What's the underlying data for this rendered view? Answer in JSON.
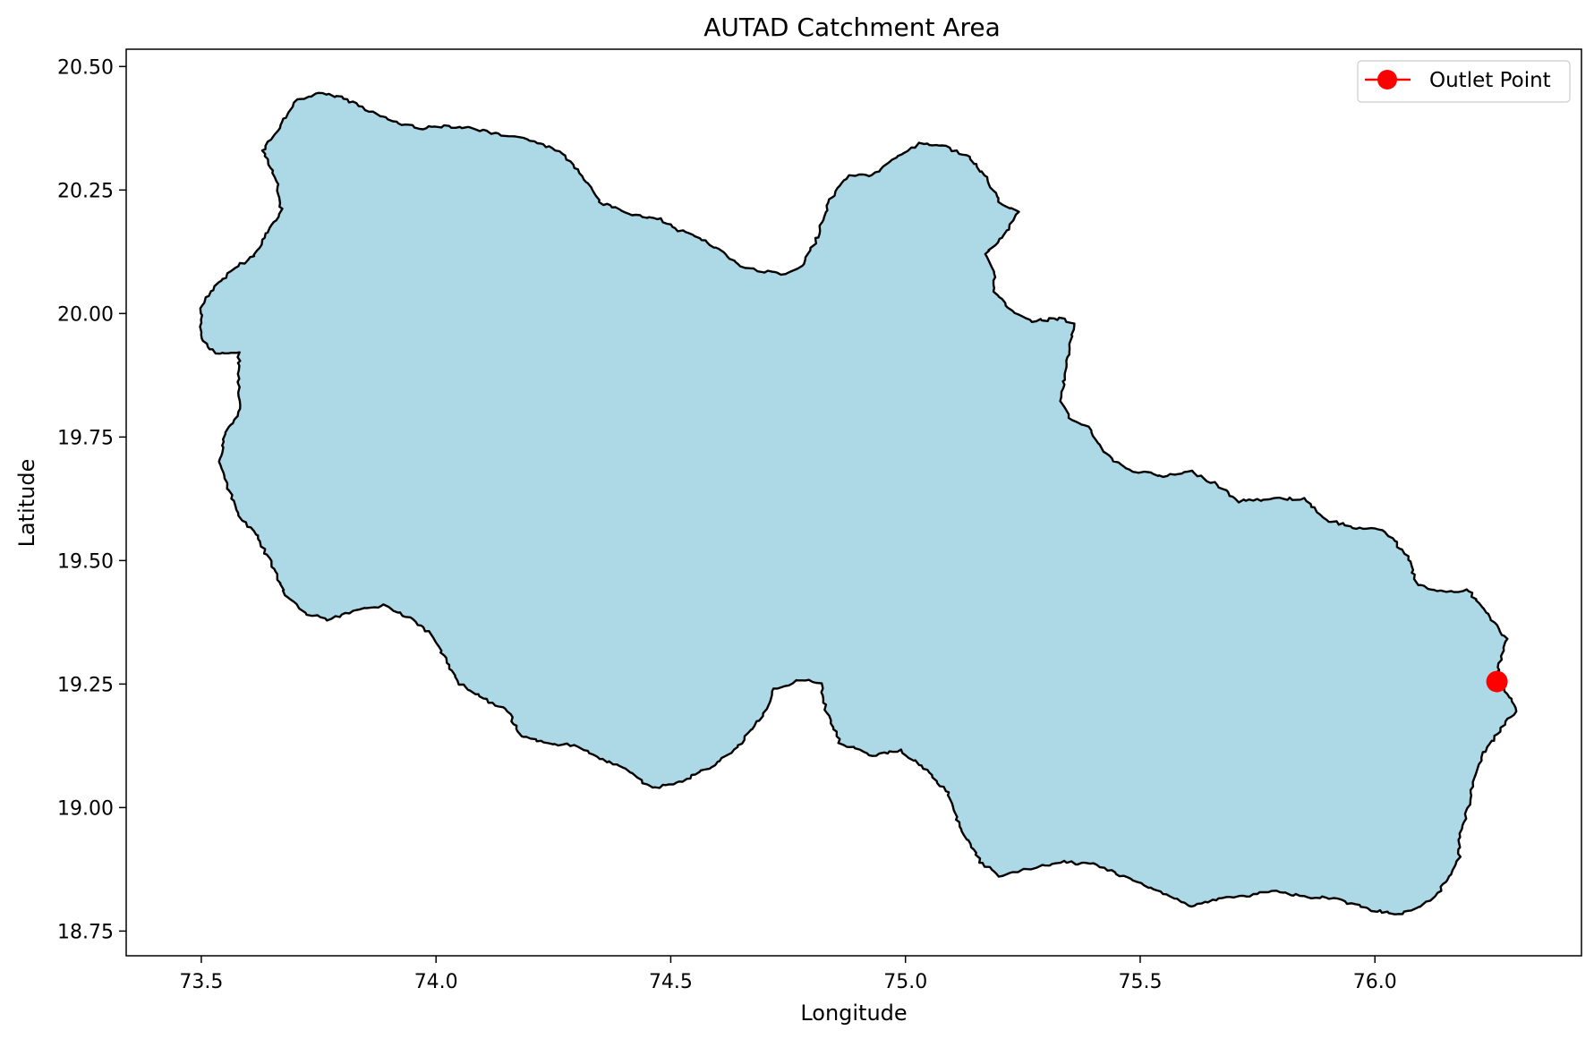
{
  "title": "AUTAD Catchment Area",
  "chart_data": {
    "type": "map",
    "title": "AUTAD Catchment Area",
    "xlabel": "Longitude",
    "ylabel": "Latitude",
    "xlim": [
      73.34,
      76.44
    ],
    "ylim": [
      18.7,
      20.535
    ],
    "xticks": [
      73.5,
      74.0,
      74.5,
      75.0,
      75.5,
      76.0
    ],
    "xtick_labels": [
      "73.5",
      "74.0",
      "74.5",
      "75.0",
      "75.5",
      "76.0"
    ],
    "yticks": [
      18.75,
      19.0,
      19.25,
      19.5,
      19.75,
      20.0,
      20.25,
      20.5
    ],
    "ytick_labels": [
      "18.75",
      "19.00",
      "19.25",
      "19.50",
      "19.75",
      "20.00",
      "20.25",
      "20.50"
    ],
    "grid": false,
    "legend_position": "top-right",
    "legend": [
      {
        "label": "Outlet Point",
        "color": "#ff0000",
        "marker": "circle"
      }
    ],
    "catchment_fill_color": "#add8e6",
    "catchment_edge_color": "#000000",
    "outlet_point": {
      "name": "Outlet Point",
      "x": 76.26,
      "y": 19.255,
      "color": "#ff0000"
    },
    "catchment_boundary": [
      [
        73.7,
        20.43
      ],
      [
        73.75,
        20.445
      ],
      [
        73.79,
        20.44
      ],
      [
        73.83,
        20.425
      ],
      [
        73.88,
        20.4
      ],
      [
        73.92,
        20.385
      ],
      [
        73.97,
        20.375
      ],
      [
        74.02,
        20.38
      ],
      [
        74.08,
        20.375
      ],
      [
        74.14,
        20.36
      ],
      [
        74.21,
        20.35
      ],
      [
        74.27,
        20.325
      ],
      [
        74.31,
        20.28
      ],
      [
        74.35,
        20.225
      ],
      [
        74.39,
        20.21
      ],
      [
        74.44,
        20.195
      ],
      [
        74.48,
        20.19
      ],
      [
        74.51,
        20.17
      ],
      [
        74.56,
        20.155
      ],
      [
        74.61,
        20.125
      ],
      [
        74.65,
        20.095
      ],
      [
        74.7,
        20.085
      ],
      [
        74.75,
        20.08
      ],
      [
        74.78,
        20.095
      ],
      [
        74.81,
        20.15
      ],
      [
        74.84,
        20.23
      ],
      [
        74.88,
        20.28
      ],
      [
        74.93,
        20.28
      ],
      [
        74.98,
        20.315
      ],
      [
        75.03,
        20.345
      ],
      [
        75.08,
        20.34
      ],
      [
        75.13,
        20.32
      ],
      [
        75.17,
        20.28
      ],
      [
        75.2,
        20.225
      ],
      [
        75.24,
        20.205
      ],
      [
        75.21,
        20.16
      ],
      [
        75.17,
        20.12
      ],
      [
        75.19,
        20.085
      ],
      [
        75.19,
        20.045
      ],
      [
        75.22,
        20.01
      ],
      [
        75.27,
        19.985
      ],
      [
        75.33,
        19.99
      ],
      [
        75.36,
        19.98
      ],
      [
        75.35,
        19.93
      ],
      [
        75.34,
        19.875
      ],
      [
        75.33,
        19.825
      ],
      [
        75.35,
        19.79
      ],
      [
        75.39,
        19.77
      ],
      [
        75.42,
        19.72
      ],
      [
        75.47,
        19.685
      ],
      [
        75.55,
        19.67
      ],
      [
        75.61,
        19.68
      ],
      [
        75.67,
        19.65
      ],
      [
        75.71,
        19.62
      ],
      [
        75.78,
        19.625
      ],
      [
        75.85,
        19.625
      ],
      [
        75.9,
        19.58
      ],
      [
        75.97,
        19.565
      ],
      [
        76.02,
        19.56
      ],
      [
        76.07,
        19.51
      ],
      [
        76.09,
        19.45
      ],
      [
        76.15,
        19.435
      ],
      [
        76.2,
        19.44
      ],
      [
        76.24,
        19.39
      ],
      [
        76.28,
        19.34
      ],
      [
        76.26,
        19.27
      ],
      [
        76.285,
        19.225
      ],
      [
        76.3,
        19.195
      ],
      [
        76.27,
        19.16
      ],
      [
        76.23,
        19.11
      ],
      [
        76.21,
        19.06
      ],
      [
        76.2,
        19.0
      ],
      [
        76.18,
        18.95
      ],
      [
        76.18,
        18.9
      ],
      [
        76.16,
        18.86
      ],
      [
        76.13,
        18.82
      ],
      [
        76.08,
        18.79
      ],
      [
        76.04,
        18.785
      ],
      [
        75.98,
        18.795
      ],
      [
        75.92,
        18.815
      ],
      [
        75.85,
        18.82
      ],
      [
        75.78,
        18.83
      ],
      [
        75.72,
        18.82
      ],
      [
        75.66,
        18.815
      ],
      [
        75.61,
        18.8
      ],
      [
        75.55,
        18.825
      ],
      [
        75.48,
        18.855
      ],
      [
        75.4,
        18.885
      ],
      [
        75.33,
        18.89
      ],
      [
        75.26,
        18.875
      ],
      [
        75.2,
        18.86
      ],
      [
        75.16,
        18.89
      ],
      [
        75.12,
        18.95
      ],
      [
        75.09,
        19.03
      ],
      [
        75.04,
        19.08
      ],
      [
        74.99,
        19.115
      ],
      [
        74.93,
        19.105
      ],
      [
        74.86,
        19.13
      ],
      [
        74.83,
        19.2
      ],
      [
        74.82,
        19.25
      ],
      [
        74.78,
        19.26
      ],
      [
        74.72,
        19.24
      ],
      [
        74.7,
        19.19
      ],
      [
        74.64,
        19.12
      ],
      [
        74.58,
        19.08
      ],
      [
        74.52,
        19.05
      ],
      [
        74.46,
        19.04
      ],
      [
        74.4,
        19.08
      ],
      [
        74.35,
        19.1
      ],
      [
        74.3,
        19.125
      ],
      [
        74.24,
        19.13
      ],
      [
        74.18,
        19.145
      ],
      [
        74.15,
        19.2
      ],
      [
        74.1,
        19.22
      ],
      [
        74.05,
        19.25
      ],
      [
        74.02,
        19.3
      ],
      [
        73.99,
        19.35
      ],
      [
        73.95,
        19.38
      ],
      [
        73.89,
        19.41
      ],
      [
        73.83,
        19.4
      ],
      [
        73.77,
        19.38
      ],
      [
        73.72,
        19.395
      ],
      [
        73.68,
        19.43
      ],
      [
        73.65,
        19.49
      ],
      [
        73.62,
        19.55
      ],
      [
        73.58,
        19.59
      ],
      [
        73.56,
        19.64
      ],
      [
        73.54,
        19.7
      ],
      [
        73.55,
        19.755
      ],
      [
        73.58,
        19.8
      ],
      [
        73.58,
        19.85
      ],
      [
        73.58,
        19.92
      ],
      [
        73.53,
        19.92
      ],
      [
        73.5,
        19.95
      ],
      [
        73.5,
        20.01
      ],
      [
        73.52,
        20.045
      ],
      [
        73.56,
        20.085
      ],
      [
        73.61,
        20.115
      ],
      [
        73.64,
        20.16
      ],
      [
        73.67,
        20.21
      ],
      [
        73.66,
        20.27
      ],
      [
        73.63,
        20.33
      ],
      [
        73.67,
        20.38
      ]
    ]
  }
}
